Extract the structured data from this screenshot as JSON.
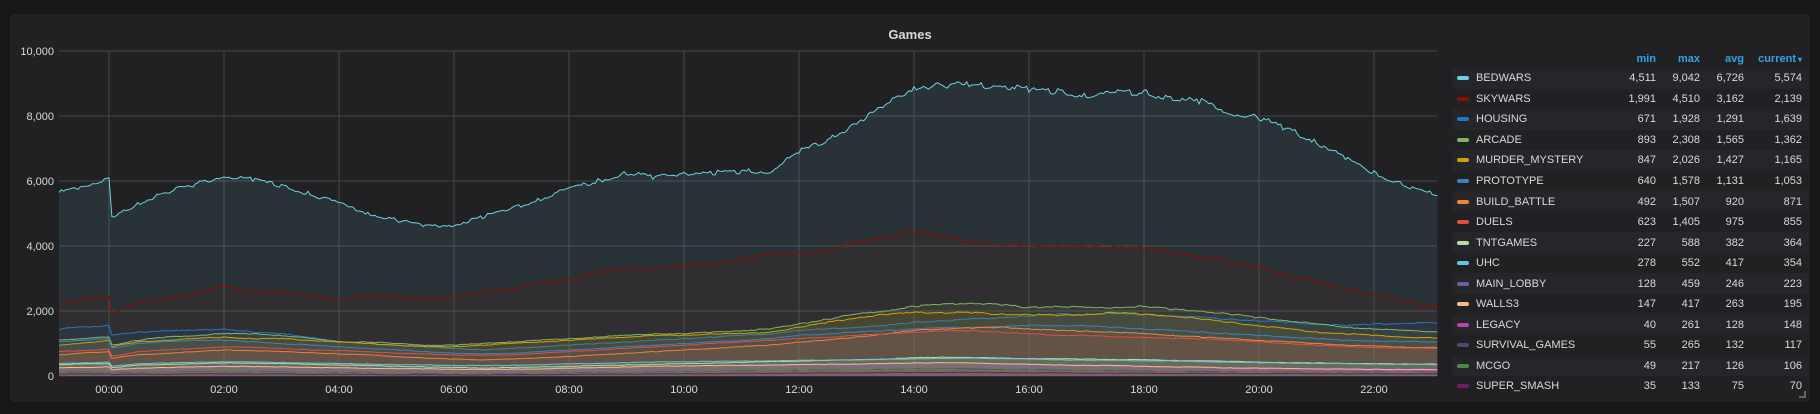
{
  "panel": {
    "title": "Games"
  },
  "legend": {
    "headers": {
      "min": "min",
      "max": "max",
      "avg": "avg",
      "current": "current"
    },
    "sort_indicator": "▾",
    "rows": [
      {
        "name": "BEDWARS",
        "color": "#6ed0e0",
        "min": "4,511",
        "max": "9,042",
        "avg": "6,726",
        "current": "5,574"
      },
      {
        "name": "SKYWARS",
        "color": "#890f02",
        "min": "1,991",
        "max": "4,510",
        "avg": "3,162",
        "current": "2,139"
      },
      {
        "name": "HOUSING",
        "color": "#1f78c1",
        "min": "671",
        "max": "1,928",
        "avg": "1,291",
        "current": "1,639"
      },
      {
        "name": "ARCADE",
        "color": "#7eb26d",
        "min": "893",
        "max": "2,308",
        "avg": "1,565",
        "current": "1,362"
      },
      {
        "name": "MURDER_MYSTERY",
        "color": "#cca300",
        "min": "847",
        "max": "2,026",
        "avg": "1,427",
        "current": "1,165"
      },
      {
        "name": "PROTOTYPE",
        "color": "#447ebc",
        "min": "640",
        "max": "1,578",
        "avg": "1,131",
        "current": "1,053"
      },
      {
        "name": "BUILD_BATTLE",
        "color": "#ef843c",
        "min": "492",
        "max": "1,507",
        "avg": "920",
        "current": "871"
      },
      {
        "name": "DUELS",
        "color": "#e24d42",
        "min": "623",
        "max": "1,405",
        "avg": "975",
        "current": "855"
      },
      {
        "name": "TNTGAMES",
        "color": "#b7dbab",
        "min": "227",
        "max": "588",
        "avg": "382",
        "current": "364"
      },
      {
        "name": "UHC",
        "color": "#65c5db",
        "min": "278",
        "max": "552",
        "avg": "417",
        "current": "354"
      },
      {
        "name": "MAIN_LOBBY",
        "color": "#705da0",
        "min": "128",
        "max": "459",
        "avg": "246",
        "current": "223"
      },
      {
        "name": "WALLS3",
        "color": "#f9ba8f",
        "min": "147",
        "max": "417",
        "avg": "263",
        "current": "195"
      },
      {
        "name": "LEGACY",
        "color": "#ba43a9",
        "min": "40",
        "max": "261",
        "avg": "128",
        "current": "148"
      },
      {
        "name": "SURVIVAL_GAMES",
        "color": "#584477",
        "min": "55",
        "max": "265",
        "avg": "132",
        "current": "117"
      },
      {
        "name": "MCGO",
        "color": "#508642",
        "min": "49",
        "max": "217",
        "avg": "126",
        "current": "106"
      },
      {
        "name": "SUPER_SMASH",
        "color": "#6d1f62",
        "min": "35",
        "max": "133",
        "avg": "75",
        "current": "70"
      }
    ]
  },
  "chart_data": {
    "type": "area",
    "title": "Games",
    "xlabel": "",
    "ylabel": "",
    "ylim": [
      0,
      10000
    ],
    "yticks": [
      "0",
      "2,000",
      "4,000",
      "6,000",
      "8,000",
      "10,000"
    ],
    "xticks": [
      "00:00",
      "02:00",
      "04:00",
      "06:00",
      "08:00",
      "10:00",
      "12:00",
      "14:00",
      "16:00",
      "18:00",
      "20:00",
      "22:00"
    ],
    "grid": true,
    "legend_position": "right",
    "x_hours": [
      -0.87,
      -0.5,
      0,
      0.05,
      0.5,
      1,
      1.5,
      2,
      2.5,
      3,
      3.5,
      4,
      4.5,
      5,
      5.5,
      6,
      6.5,
      7,
      7.5,
      8,
      8.5,
      9,
      9.5,
      10,
      10.5,
      11,
      11.5,
      12,
      12.5,
      13,
      13.5,
      14,
      14.5,
      15,
      15.5,
      16,
      16.5,
      17,
      17.5,
      18,
      18.5,
      19,
      19.5,
      20,
      20.5,
      21,
      21.5,
      22,
      22.5,
      23.1
    ],
    "series": [
      {
        "name": "BEDWARS",
        "values": [
          5650,
          5800,
          6100,
          4850,
          5300,
          5650,
          5900,
          6150,
          6050,
          5850,
          5600,
          5300,
          5000,
          4800,
          4600,
          4650,
          4900,
          5150,
          5450,
          5750,
          6000,
          6250,
          6100,
          6250,
          6250,
          6300,
          6300,
          6900,
          7250,
          7800,
          8300,
          8900,
          8950,
          8950,
          8950,
          8800,
          8750,
          8650,
          8700,
          8750,
          8500,
          8450,
          8100,
          7950,
          7600,
          7200,
          6700,
          6250,
          5900,
          5550
        ]
      },
      {
        "name": "SKYWARS",
        "values": [
          2200,
          2350,
          2450,
          1950,
          2250,
          2400,
          2550,
          2750,
          2600,
          2600,
          2500,
          2350,
          2500,
          2450,
          2400,
          2400,
          2600,
          2700,
          2850,
          3000,
          3200,
          3300,
          3350,
          3400,
          3450,
          3600,
          3750,
          3800,
          3850,
          4100,
          4300,
          4450,
          4300,
          4150,
          4000,
          4050,
          4000,
          3950,
          4000,
          3950,
          3800,
          3700,
          3500,
          3350,
          3100,
          2900,
          2700,
          2500,
          2300,
          2150
        ]
      },
      {
        "name": "HOUSING",
        "values": [
          1450,
          1500,
          1550,
          1250,
          1350,
          1400,
          1400,
          1450,
          1350,
          1300,
          1200,
          1050,
          1000,
          950,
          900,
          850,
          800,
          850,
          900,
          950,
          1000,
          1050,
          1100,
          1150,
          1200,
          1250,
          1300,
          1400,
          1450,
          1500,
          1550,
          1650,
          1700,
          1750,
          1800,
          1850,
          1900,
          1900,
          1920,
          1880,
          1850,
          1800,
          1750,
          1700,
          1650,
          1600,
          1550,
          1600,
          1620,
          1640
        ]
      },
      {
        "name": "ARCADE",
        "values": [
          1100,
          1150,
          1200,
          950,
          1100,
          1200,
          1250,
          1300,
          1300,
          1250,
          1150,
          1050,
          1050,
          1000,
          950,
          950,
          1000,
          1050,
          1100,
          1150,
          1200,
          1250,
          1300,
          1300,
          1350,
          1400,
          1450,
          1600,
          1750,
          1900,
          2000,
          2150,
          2200,
          2250,
          2200,
          2100,
          2150,
          2100,
          2100,
          2150,
          2050,
          2000,
          1900,
          1800,
          1700,
          1600,
          1500,
          1450,
          1400,
          1360
        ]
      },
      {
        "name": "MURDER_MYSTERY",
        "values": [
          950,
          1000,
          1100,
          900,
          1050,
          1100,
          1150,
          1200,
          1150,
          1150,
          1100,
          1050,
          1000,
          950,
          900,
          900,
          950,
          1000,
          1050,
          1100,
          1150,
          1200,
          1250,
          1250,
          1300,
          1300,
          1350,
          1500,
          1650,
          1800,
          1900,
          1950,
          1950,
          1950,
          1900,
          1900,
          1850,
          1900,
          1950,
          1900,
          1850,
          1750,
          1650,
          1550,
          1450,
          1350,
          1300,
          1250,
          1200,
          1165
        ]
      },
      {
        "name": "PROTOTYPE",
        "values": [
          1050,
          1100,
          1150,
          850,
          1000,
          1050,
          1100,
          1100,
          1050,
          1000,
          950,
          900,
          850,
          800,
          750,
          700,
          680,
          700,
          750,
          800,
          850,
          900,
          950,
          1000,
          1050,
          1100,
          1150,
          1250,
          1300,
          1350,
          1400,
          1450,
          1480,
          1500,
          1520,
          1550,
          1560,
          1540,
          1500,
          1450,
          1400,
          1350,
          1300,
          1250,
          1200,
          1150,
          1100,
          1080,
          1060,
          1053
        ]
      },
      {
        "name": "BUILD_BATTLE",
        "values": [
          650,
          700,
          750,
          550,
          650,
          700,
          750,
          800,
          780,
          750,
          720,
          680,
          650,
          600,
          550,
          520,
          500,
          520,
          560,
          600,
          650,
          700,
          750,
          800,
          850,
          900,
          950,
          1050,
          1100,
          1200,
          1300,
          1400,
          1450,
          1480,
          1500,
          1450,
          1400,
          1380,
          1350,
          1300,
          1250,
          1200,
          1150,
          1100,
          1050,
          1000,
          950,
          920,
          890,
          871
        ]
      },
      {
        "name": "DUELS",
        "values": [
          750,
          780,
          820,
          600,
          750,
          800,
          850,
          900,
          880,
          850,
          800,
          780,
          750,
          700,
          680,
          650,
          640,
          650,
          700,
          750,
          800,
          850,
          900,
          950,
          1000,
          1050,
          1100,
          1150,
          1200,
          1250,
          1300,
          1350,
          1380,
          1400,
          1350,
          1300,
          1250,
          1250,
          1200,
          1200,
          1150,
          1150,
          1100,
          1050,
          1000,
          950,
          900,
          880,
          860,
          855
        ]
      },
      {
        "name": "TNTGAMES",
        "values": [
          350,
          370,
          380,
          260,
          330,
          360,
          380,
          400,
          400,
          380,
          360,
          340,
          320,
          300,
          280,
          260,
          250,
          260,
          280,
          300,
          320,
          340,
          360,
          380,
          400,
          420,
          440,
          460,
          480,
          500,
          520,
          560,
          580,
          570,
          550,
          540,
          530,
          520,
          510,
          500,
          480,
          470,
          450,
          430,
          410,
          400,
          390,
          380,
          370,
          364
        ]
      },
      {
        "name": "UHC",
        "values": [
          380,
          400,
          420,
          300,
          380,
          400,
          420,
          440,
          430,
          420,
          400,
          380,
          370,
          350,
          340,
          330,
          320,
          330,
          350,
          370,
          390,
          410,
          430,
          440,
          450,
          460,
          470,
          480,
          490,
          500,
          510,
          530,
          540,
          550,
          540,
          520,
          500,
          490,
          480,
          470,
          460,
          440,
          430,
          410,
          400,
          390,
          380,
          370,
          360,
          354
        ]
      },
      {
        "name": "MAIN_LOBBY",
        "values": [
          240,
          250,
          260,
          180,
          220,
          240,
          250,
          260,
          250,
          240,
          230,
          220,
          210,
          200,
          190,
          180,
          170,
          180,
          190,
          200,
          210,
          220,
          230,
          240,
          250,
          260,
          270,
          280,
          290,
          300,
          310,
          320,
          330,
          320,
          310,
          300,
          290,
          280,
          280,
          270,
          260,
          260,
          250,
          240,
          240,
          230,
          230,
          225,
          224,
          223
        ]
      },
      {
        "name": "WALLS3",
        "values": [
          250,
          260,
          280,
          190,
          240,
          260,
          280,
          300,
          290,
          280,
          270,
          250,
          240,
          230,
          220,
          210,
          200,
          210,
          220,
          240,
          260,
          280,
          300,
          310,
          320,
          330,
          340,
          350,
          360,
          370,
          380,
          400,
          410,
          400,
          380,
          360,
          340,
          330,
          320,
          300,
          280,
          270,
          250,
          240,
          230,
          220,
          210,
          205,
          200,
          195
        ]
      },
      {
        "name": "LEGACY",
        "values": [
          100,
          110,
          120,
          70,
          100,
          110,
          120,
          130,
          120,
          110,
          100,
          90,
          80,
          70,
          60,
          50,
          50,
          60,
          70,
          80,
          90,
          100,
          110,
          120,
          130,
          140,
          150,
          160,
          170,
          180,
          190,
          200,
          210,
          200,
          190,
          180,
          170,
          170,
          160,
          160,
          150,
          150,
          150,
          150,
          150,
          150,
          150,
          150,
          150,
          148
        ]
      },
      {
        "name": "SURVIVAL_GAMES",
        "values": [
          110,
          120,
          130,
          80,
          110,
          120,
          130,
          140,
          130,
          120,
          110,
          100,
          90,
          80,
          70,
          60,
          60,
          70,
          80,
          90,
          100,
          110,
          120,
          130,
          140,
          150,
          160,
          170,
          180,
          190,
          200,
          210,
          220,
          210,
          200,
          190,
          180,
          170,
          160,
          150,
          140,
          135,
          130,
          125,
          122,
          120,
          119,
          118,
          118,
          117
        ]
      },
      {
        "name": "MCGO",
        "values": [
          100,
          110,
          120,
          70,
          100,
          110,
          120,
          130,
          120,
          110,
          100,
          90,
          80,
          70,
          60,
          55,
          55,
          60,
          70,
          80,
          90,
          100,
          110,
          120,
          130,
          140,
          150,
          160,
          170,
          180,
          190,
          200,
          200,
          190,
          180,
          170,
          160,
          150,
          140,
          130,
          125,
          120,
          115,
          112,
          110,
          108,
          107,
          106,
          106,
          106
        ]
      },
      {
        "name": "SUPER_SMASH",
        "values": [
          60,
          65,
          70,
          40,
          55,
          60,
          65,
          70,
          65,
          60,
          55,
          50,
          45,
          40,
          38,
          36,
          35,
          38,
          42,
          48,
          55,
          60,
          65,
          70,
          75,
          80,
          85,
          90,
          95,
          100,
          105,
          110,
          115,
          110,
          105,
          100,
          95,
          90,
          88,
          85,
          82,
          80,
          78,
          76,
          74,
          72,
          71,
          70,
          70,
          70
        ]
      }
    ]
  }
}
